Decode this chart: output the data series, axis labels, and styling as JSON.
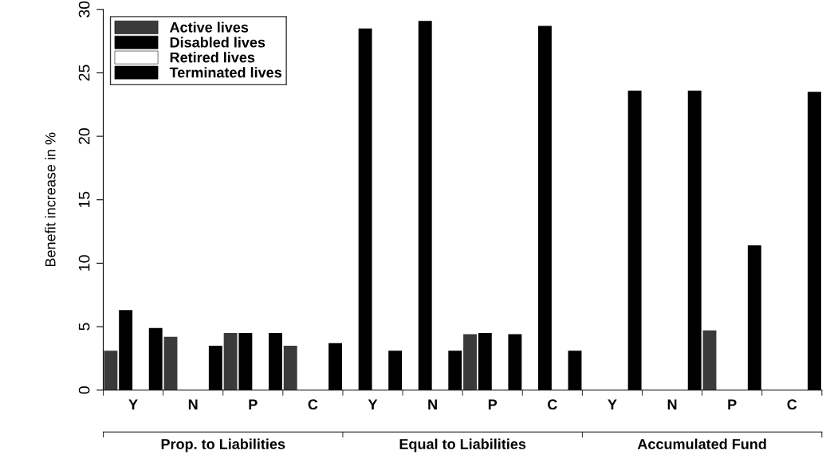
{
  "chart_data": {
    "type": "bar",
    "ylabel": "Benefit increase in %",
    "categories": [
      "Y",
      "N",
      "P",
      "C",
      "Y",
      "N",
      "P",
      "C",
      "Y",
      "N",
      "P",
      "C"
    ],
    "series": [
      {
        "name": "Active lives",
        "color": "#3a3a3a",
        "values": [
          3.1,
          4.2,
          4.5,
          3.5,
          0,
          0,
          4.4,
          0,
          0,
          0,
          4.7,
          0
        ]
      },
      {
        "name": "Disabled lives",
        "color": "#000000",
        "values": [
          6.3,
          0,
          4.5,
          0,
          28.5,
          29.1,
          4.5,
          28.7,
          0,
          0,
          0,
          0
        ]
      },
      {
        "name": "Retired lives",
        "color": "#ffffff",
        "values": [
          0,
          0,
          0,
          0,
          0,
          0,
          0,
          0,
          0,
          0,
          0,
          0
        ]
      },
      {
        "name": "Terminated lives",
        "color": "#000000",
        "values": [
          4.9,
          3.5,
          4.5,
          3.7,
          3.1,
          3.1,
          4.4,
          3.1,
          23.6,
          23.6,
          11.4,
          23.5
        ]
      }
    ],
    "ylim": [
      0,
      30
    ],
    "yticks": [
      0,
      5,
      10,
      15,
      20,
      25,
      30
    ],
    "grid": false,
    "legend": "top left",
    "annotations": [
      "Prop. to Liabilities",
      "Equal to Liabilities",
      "Accumulated Fund"
    ]
  }
}
